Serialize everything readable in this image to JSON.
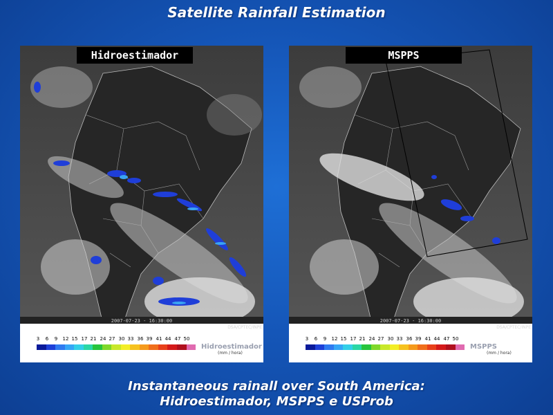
{
  "slide": {
    "title": "Satellite Rainfall Estimation",
    "caption_line1": "Instantaneous rainall over South America:",
    "caption_line2": "Hidroestimador, MSPPS e USProb"
  },
  "panels": [
    {
      "label": "Hidroestimador",
      "date_stamp": "2007-07-23 - 16:30:00",
      "credit": "DSA/CPTEC/INPE",
      "legend_name": "Hidroestimador",
      "legend_units": "(mm / hora)"
    },
    {
      "label": "MSPPS",
      "date_stamp": "2007-07-23 - 16:30:00",
      "credit": "DSA/CPTEC/INPE",
      "legend_name": "MSPPS",
      "legend_units": "(mm / hora)"
    }
  ],
  "legend": {
    "ticks": [
      "3",
      "6",
      "9",
      "12",
      "15",
      "17",
      "21",
      "24",
      "27",
      "30",
      "33",
      "36",
      "39",
      "41",
      "44",
      "47",
      "50"
    ],
    "colors": [
      "#0a1a9a",
      "#1e40d8",
      "#2f7af0",
      "#35a6f6",
      "#33cfe8",
      "#2ad7a6",
      "#27c43d",
      "#7fd82a",
      "#c8e82a",
      "#f3ee27",
      "#f6c21f",
      "#f59a1c",
      "#f06e1b",
      "#e8401a",
      "#d41a1a",
      "#b0101e",
      "#e06ab0"
    ]
  }
}
